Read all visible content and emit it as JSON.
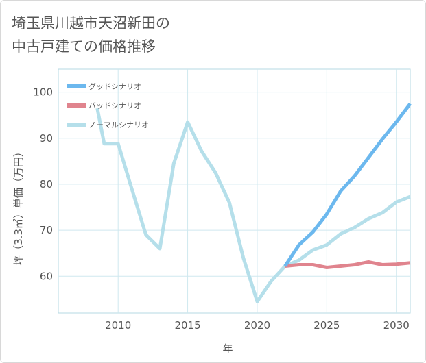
{
  "chart_data": {
    "type": "line",
    "title": "埼玉県川越市天沼新田の\n中古戸建ての価格推移",
    "xlabel": "年",
    "ylabel": "坪（3.3㎡）単価（万円）",
    "xlim": [
      2005.7,
      2031
    ],
    "ylim": [
      52,
      105
    ],
    "x_ticks": [
      2010,
      2015,
      2020,
      2025,
      2030
    ],
    "y_ticks": [
      60,
      70,
      80,
      90,
      100
    ],
    "legend_position": "top-left",
    "series": [
      {
        "name": "グッドシナリオ",
        "color": "#6cb8ee",
        "x": [
          2022,
          2023,
          2024,
          2025,
          2026,
          2027,
          2028,
          2029,
          2030,
          2031
        ],
        "values": [
          62.2,
          66.8,
          69.6,
          73.5,
          78.5,
          81.8,
          85.8,
          89.8,
          93.5,
          97.5
        ]
      },
      {
        "name": "バッドシナリオ",
        "color": "#e0848e",
        "x": [
          2022,
          2023,
          2024,
          2025,
          2026,
          2027,
          2028,
          2029,
          2030,
          2031
        ],
        "values": [
          62.2,
          62.5,
          62.5,
          61.9,
          62.2,
          62.5,
          63.1,
          62.5,
          62.6,
          62.9
        ]
      },
      {
        "name": "ノーマルシナリオ",
        "color": "#b5dfea",
        "x": [
          2008.5,
          2009,
          2010,
          2011,
          2012,
          2013,
          2014,
          2015,
          2016,
          2017,
          2018,
          2019,
          2020,
          2021,
          2022,
          2023,
          2024,
          2025,
          2026,
          2027,
          2028,
          2029,
          2030,
          2031
        ],
        "values": [
          96.5,
          88.8,
          88.8,
          78.8,
          69.0,
          66.0,
          84.5,
          93.5,
          87.2,
          82.5,
          76.0,
          64.0,
          54.5,
          58.9,
          62.2,
          63.5,
          65.7,
          66.8,
          69.2,
          70.6,
          72.5,
          73.8,
          76.1,
          77.3
        ]
      }
    ]
  }
}
